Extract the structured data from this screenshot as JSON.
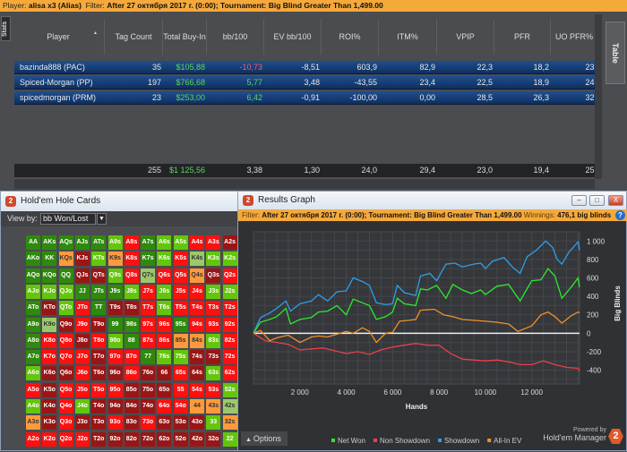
{
  "topbar": {
    "player_label": "Player:",
    "player": "alisa x3 (Alias)",
    "filter_label": "Filter:",
    "filter": "After 27 октября 2017 г. (0:00); Tournament: Big Blind Greater Than 1,499.00"
  },
  "side_tabs": {
    "stats": "Stats",
    "table": "Table"
  },
  "table": {
    "columns": [
      "Player",
      "Tag Count",
      "Total Buy-In",
      "bb/100",
      "EV bb/100",
      "ROI%",
      "ITM%",
      "VPIP",
      "PFR",
      "UO PFR%"
    ],
    "rows": [
      [
        "bazinda888 (PAC)",
        "35",
        "$105,88",
        "-10,73",
        "-8,51",
        "603,9",
        "82,9",
        "22,3",
        "18,2",
        "23,"
      ],
      [
        "Spiced-Morgan (PP)",
        "197",
        "$766,68",
        "5,77",
        "3,48",
        "-43,55",
        "23,4",
        "22,5",
        "18,9",
        "24,"
      ],
      [
        "spicedmorgan (PRM)",
        "23",
        "$253,00",
        "6,42",
        "-0,91",
        "-100,00",
        "0,00",
        "28,5",
        "26,3",
        "32,"
      ]
    ],
    "totals": [
      "",
      "255",
      "$1 125,56",
      "3,38",
      "1,30",
      "24,0",
      "29,4",
      "23,0",
      "19,4",
      "25,"
    ],
    "colors": {
      "positive": "#5fd35f",
      "negative": "#ff5a5a",
      "money": "#5fd35f"
    }
  },
  "hole_cards": {
    "title": "Hold'em Hole Cards",
    "logo": "2",
    "view_by_label": "View by:",
    "view_by_value": "bb Won/Lost",
    "palette": {
      "D": "#2e8a0c",
      "L": "#63c60a",
      "P": "#9cc86c",
      "O": "#ff9a3c",
      "R": "#ff1010",
      "M": "#9a1616"
    },
    "labels": [
      [
        "AA",
        "AKs",
        "AQs",
        "AJs",
        "ATs",
        "A9s",
        "A8s",
        "A7s",
        "A6s",
        "A5s",
        "A4s",
        "A3s",
        "A2s"
      ],
      [
        "AKo",
        "KK",
        "KQs",
        "KJs",
        "KTs",
        "K9s",
        "K8s",
        "K7s",
        "K6s",
        "K5s",
        "K4s",
        "K3s",
        "K2s"
      ],
      [
        "AQo",
        "KQo",
        "QQ",
        "QJs",
        "QTs",
        "Q9s",
        "Q8s",
        "Q7s",
        "Q6s",
        "Q5s",
        "Q4s",
        "Q3s",
        "Q2s"
      ],
      [
        "AJo",
        "KJo",
        "QJo",
        "JJ",
        "JTs",
        "J9s",
        "J8s",
        "J7s",
        "J6s",
        "J5s",
        "J4s",
        "J3s",
        "J2s"
      ],
      [
        "ATo",
        "KTo",
        "QTo",
        "JTo",
        "TT",
        "T9s",
        "T8s",
        "T7s",
        "T6s",
        "T5s",
        "T4s",
        "T3s",
        "T2s"
      ],
      [
        "A9o",
        "K9o",
        "Q9o",
        "J9o",
        "T9o",
        "99",
        "98s",
        "97s",
        "96s",
        "95s",
        "94s",
        "93s",
        "92s"
      ],
      [
        "A8o",
        "K8o",
        "Q8o",
        "J8o",
        "T8o",
        "98o",
        "88",
        "87s",
        "86s",
        "85s",
        "84s",
        "83s",
        "82s"
      ],
      [
        "A7o",
        "K7o",
        "Q7o",
        "J7o",
        "T7o",
        "97o",
        "87o",
        "77",
        "76s",
        "75s",
        "74s",
        "73s",
        "72s"
      ],
      [
        "A6o",
        "K6o",
        "Q6o",
        "J6o",
        "T6o",
        "96o",
        "86o",
        "76o",
        "66",
        "65s",
        "64s",
        "63s",
        "62s"
      ],
      [
        "A5o",
        "K5o",
        "Q5o",
        "J5o",
        "T5o",
        "95o",
        "85o",
        "75o",
        "65o",
        "55",
        "54s",
        "53s",
        "52s"
      ],
      [
        "A4o",
        "K4o",
        "Q4o",
        "J4o",
        "T4o",
        "94o",
        "84o",
        "74o",
        "64o",
        "54o",
        "44",
        "43s",
        "42s"
      ],
      [
        "A3o",
        "K3o",
        "Q3o",
        "J3o",
        "T3o",
        "93o",
        "83o",
        "73o",
        "63o",
        "53o",
        "43o",
        "33",
        "32s"
      ],
      [
        "A2o",
        "K2o",
        "Q2o",
        "J2o",
        "T2o",
        "92o",
        "82o",
        "72o",
        "62o",
        "52o",
        "42o",
        "32o",
        "22"
      ]
    ],
    "colors": [
      "DDDDDLRDLLRRM",
      "DDOMLORDLRPLL",
      "DDDMMLRPRROMRR",
      "LLLDDDLRLRRLL",
      "DMLRDMMRLRRRR",
      "DPMRMDDRRDRRR",
      "DRRMRLDRROOLR",
      "DRRRMRRDLLMMR",
      "LMMRMMRMMRMLR",
      "RMRRRRMMMRRRL",
      "LMRLMMMMRROOP",
      "OMRMMRMRMMMLO",
      "RRRRMMMMMMMML"
    ]
  },
  "results_graph": {
    "title": "Results Graph",
    "logo": "2",
    "filter_label": "Filter:",
    "filter": "After 27 октября 2017 г. (0:00); Tournament: Big Blind Greater Than 1,499.00",
    "winnings_label": "Winnings:",
    "winnings": "476,1 big blinds",
    "options_label": "Options",
    "powered_by": "Powered by",
    "brand": "Hold'em Manager",
    "brand_logo": "2",
    "help": "?",
    "window_buttons": {
      "minimize": "–",
      "maximize": "□",
      "close": "X"
    }
  },
  "chart_data": {
    "type": "line",
    "xlabel": "Hands",
    "ylabel": "Big Blinds",
    "xlim": [
      0,
      14060
    ],
    "ylim": [
      -550,
      1100
    ],
    "xticks": [
      2000,
      4000,
      6000,
      8000,
      10000,
      12000
    ],
    "xtick_labels": [
      "2 000",
      "4 000",
      "6 000",
      "8 000",
      "10 000",
      "12 000"
    ],
    "yticks": [
      1000,
      800,
      600,
      400,
      200,
      0,
      -200,
      -400
    ],
    "ytick_labels": [
      "1 000",
      "800",
      "600",
      "400",
      "200",
      "0",
      "-200",
      "-400"
    ],
    "grid": true,
    "legend_position": "bottom",
    "series": [
      {
        "name": "Net Won",
        "color": "#2ee82e",
        "points": [
          [
            0,
            0
          ],
          [
            300,
            120
          ],
          [
            700,
            150
          ],
          [
            1000,
            180
          ],
          [
            1400,
            270
          ],
          [
            1600,
            100
          ],
          [
            2000,
            150
          ],
          [
            2500,
            170
          ],
          [
            2800,
            230
          ],
          [
            3200,
            240
          ],
          [
            3600,
            300
          ],
          [
            4000,
            200
          ],
          [
            4300,
            370
          ],
          [
            4700,
            330
          ],
          [
            5000,
            300
          ],
          [
            5300,
            150
          ],
          [
            5700,
            180
          ],
          [
            6000,
            230
          ],
          [
            6200,
            380
          ],
          [
            6500,
            320
          ],
          [
            7000,
            300
          ],
          [
            7200,
            480
          ],
          [
            7500,
            470
          ],
          [
            7900,
            520
          ],
          [
            8300,
            380
          ],
          [
            8600,
            530
          ],
          [
            9000,
            470
          ],
          [
            9400,
            430
          ],
          [
            9800,
            470
          ],
          [
            10000,
            420
          ],
          [
            10500,
            510
          ],
          [
            11000,
            530
          ],
          [
            11500,
            350
          ],
          [
            11700,
            440
          ],
          [
            12000,
            570
          ],
          [
            12400,
            580
          ],
          [
            12700,
            700
          ],
          [
            13000,
            620
          ],
          [
            13300,
            380
          ],
          [
            13700,
            500
          ],
          [
            14000,
            600
          ],
          [
            14060,
            500
          ]
        ]
      },
      {
        "name": "Non Showdown",
        "color": "#e8404a",
        "points": [
          [
            0,
            0
          ],
          [
            500,
            -80
          ],
          [
            1000,
            -100
          ],
          [
            1500,
            -120
          ],
          [
            2000,
            -180
          ],
          [
            2500,
            -170
          ],
          [
            3000,
            -160
          ],
          [
            3500,
            -190
          ],
          [
            4000,
            -220
          ],
          [
            4500,
            -200
          ],
          [
            5000,
            -230
          ],
          [
            5500,
            -180
          ],
          [
            6000,
            -150
          ],
          [
            6500,
            -130
          ],
          [
            7000,
            -110
          ],
          [
            7500,
            -130
          ],
          [
            8000,
            -130
          ],
          [
            8500,
            -220
          ],
          [
            9000,
            -280
          ],
          [
            9500,
            -290
          ],
          [
            10000,
            -300
          ],
          [
            10500,
            -290
          ],
          [
            11000,
            -310
          ],
          [
            11500,
            -340
          ],
          [
            12000,
            -340
          ],
          [
            12500,
            -300
          ],
          [
            13000,
            -340
          ],
          [
            13500,
            -370
          ],
          [
            14000,
            -380
          ],
          [
            14060,
            -410
          ]
        ]
      },
      {
        "name": "Showdown",
        "color": "#2e9ee8",
        "points": [
          [
            0,
            0
          ],
          [
            300,
            170
          ],
          [
            700,
            220
          ],
          [
            1000,
            270
          ],
          [
            1400,
            350
          ],
          [
            1600,
            240
          ],
          [
            2000,
            320
          ],
          [
            2500,
            350
          ],
          [
            2800,
            420
          ],
          [
            3200,
            350
          ],
          [
            3600,
            450
          ],
          [
            4000,
            460
          ],
          [
            4300,
            600
          ],
          [
            4700,
            560
          ],
          [
            5000,
            520
          ],
          [
            5300,
            330
          ],
          [
            5700,
            310
          ],
          [
            6000,
            320
          ],
          [
            6200,
            520
          ],
          [
            6500,
            440
          ],
          [
            7000,
            410
          ],
          [
            7200,
            620
          ],
          [
            7600,
            650
          ],
          [
            7900,
            570
          ],
          [
            8300,
            750
          ],
          [
            8700,
            760
          ],
          [
            9000,
            720
          ],
          [
            9500,
            750
          ],
          [
            9800,
            760
          ],
          [
            10000,
            700
          ],
          [
            10300,
            780
          ],
          [
            10800,
            820
          ],
          [
            11200,
            710
          ],
          [
            11500,
            650
          ],
          [
            11800,
            830
          ],
          [
            12200,
            900
          ],
          [
            12600,
            1000
          ],
          [
            12900,
            930
          ],
          [
            13100,
            800
          ],
          [
            13300,
            750
          ],
          [
            13600,
            880
          ],
          [
            14000,
            990
          ],
          [
            14060,
            900
          ]
        ]
      },
      {
        "name": "All-In EV",
        "color": "#f0902a",
        "points": [
          [
            0,
            0
          ],
          [
            300,
            30
          ],
          [
            700,
            -80
          ],
          [
            1000,
            -50
          ],
          [
            1500,
            -20
          ],
          [
            2000,
            -100
          ],
          [
            2500,
            -40
          ],
          [
            2800,
            -30
          ],
          [
            3200,
            -40
          ],
          [
            3600,
            -10
          ],
          [
            4000,
            20
          ],
          [
            4300,
            0
          ],
          [
            4700,
            60
          ],
          [
            5000,
            20
          ],
          [
            5300,
            -100
          ],
          [
            5700,
            0
          ],
          [
            6000,
            10
          ],
          [
            6300,
            130
          ],
          [
            6700,
            140
          ],
          [
            7000,
            150
          ],
          [
            7200,
            250
          ],
          [
            7800,
            260
          ],
          [
            8200,
            200
          ],
          [
            8600,
            180
          ],
          [
            9000,
            150
          ],
          [
            9500,
            140
          ],
          [
            10000,
            130
          ],
          [
            10500,
            120
          ],
          [
            11000,
            100
          ],
          [
            11400,
            20
          ],
          [
            12000,
            80
          ],
          [
            12400,
            200
          ],
          [
            12700,
            230
          ],
          [
            13000,
            180
          ],
          [
            13300,
            110
          ],
          [
            13700,
            190
          ],
          [
            14000,
            230
          ],
          [
            14060,
            220
          ]
        ]
      }
    ]
  }
}
